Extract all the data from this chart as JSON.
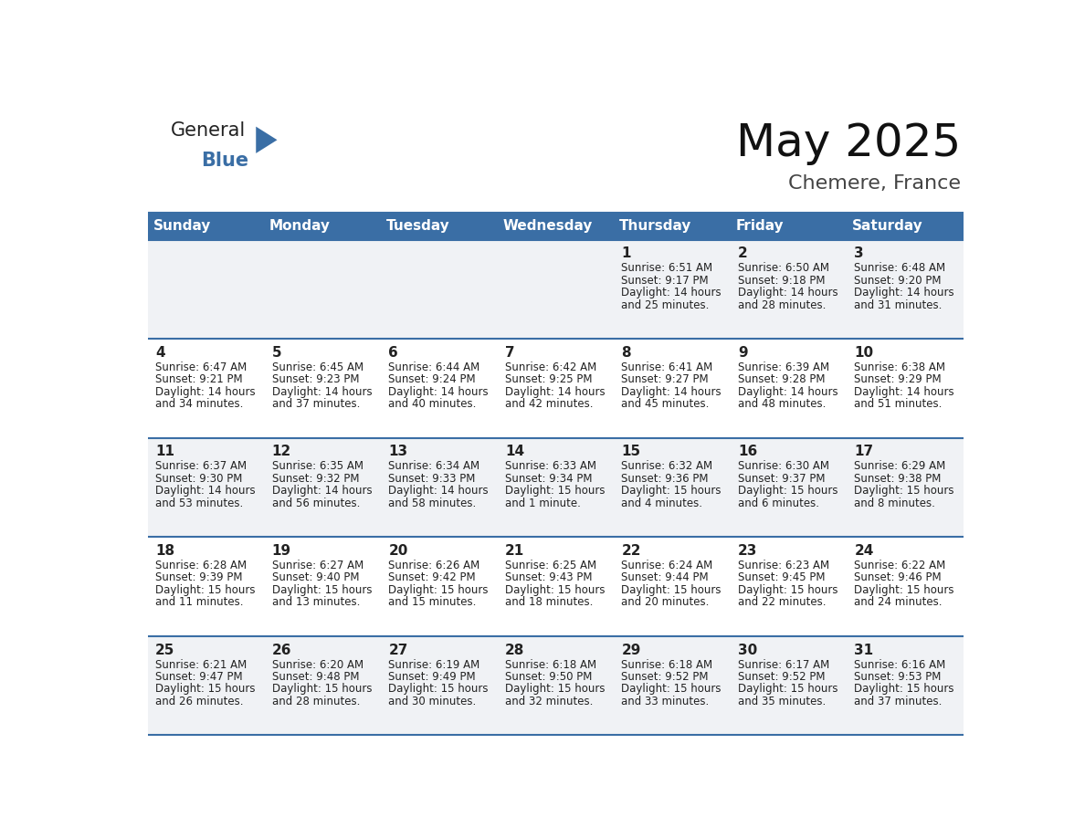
{
  "title": "May 2025",
  "subtitle": "Chemere, France",
  "days_of_week": [
    "Sunday",
    "Monday",
    "Tuesday",
    "Wednesday",
    "Thursday",
    "Friday",
    "Saturday"
  ],
  "header_color": "#3a6ea5",
  "header_text_color": "#ffffff",
  "row_bg_odd": "#f0f2f5",
  "row_bg_even": "#ffffff",
  "day_number_color": "#222222",
  "text_color": "#222222",
  "border_color": "#3a6ea5",
  "weeks": [
    [
      {
        "day": null,
        "info": null
      },
      {
        "day": null,
        "info": null
      },
      {
        "day": null,
        "info": null
      },
      {
        "day": null,
        "info": null
      },
      {
        "day": 1,
        "info": "Sunrise: 6:51 AM\nSunset: 9:17 PM\nDaylight: 14 hours\nand 25 minutes."
      },
      {
        "day": 2,
        "info": "Sunrise: 6:50 AM\nSunset: 9:18 PM\nDaylight: 14 hours\nand 28 minutes."
      },
      {
        "day": 3,
        "info": "Sunrise: 6:48 AM\nSunset: 9:20 PM\nDaylight: 14 hours\nand 31 minutes."
      }
    ],
    [
      {
        "day": 4,
        "info": "Sunrise: 6:47 AM\nSunset: 9:21 PM\nDaylight: 14 hours\nand 34 minutes."
      },
      {
        "day": 5,
        "info": "Sunrise: 6:45 AM\nSunset: 9:23 PM\nDaylight: 14 hours\nand 37 minutes."
      },
      {
        "day": 6,
        "info": "Sunrise: 6:44 AM\nSunset: 9:24 PM\nDaylight: 14 hours\nand 40 minutes."
      },
      {
        "day": 7,
        "info": "Sunrise: 6:42 AM\nSunset: 9:25 PM\nDaylight: 14 hours\nand 42 minutes."
      },
      {
        "day": 8,
        "info": "Sunrise: 6:41 AM\nSunset: 9:27 PM\nDaylight: 14 hours\nand 45 minutes."
      },
      {
        "day": 9,
        "info": "Sunrise: 6:39 AM\nSunset: 9:28 PM\nDaylight: 14 hours\nand 48 minutes."
      },
      {
        "day": 10,
        "info": "Sunrise: 6:38 AM\nSunset: 9:29 PM\nDaylight: 14 hours\nand 51 minutes."
      }
    ],
    [
      {
        "day": 11,
        "info": "Sunrise: 6:37 AM\nSunset: 9:30 PM\nDaylight: 14 hours\nand 53 minutes."
      },
      {
        "day": 12,
        "info": "Sunrise: 6:35 AM\nSunset: 9:32 PM\nDaylight: 14 hours\nand 56 minutes."
      },
      {
        "day": 13,
        "info": "Sunrise: 6:34 AM\nSunset: 9:33 PM\nDaylight: 14 hours\nand 58 minutes."
      },
      {
        "day": 14,
        "info": "Sunrise: 6:33 AM\nSunset: 9:34 PM\nDaylight: 15 hours\nand 1 minute."
      },
      {
        "day": 15,
        "info": "Sunrise: 6:32 AM\nSunset: 9:36 PM\nDaylight: 15 hours\nand 4 minutes."
      },
      {
        "day": 16,
        "info": "Sunrise: 6:30 AM\nSunset: 9:37 PM\nDaylight: 15 hours\nand 6 minutes."
      },
      {
        "day": 17,
        "info": "Sunrise: 6:29 AM\nSunset: 9:38 PM\nDaylight: 15 hours\nand 8 minutes."
      }
    ],
    [
      {
        "day": 18,
        "info": "Sunrise: 6:28 AM\nSunset: 9:39 PM\nDaylight: 15 hours\nand 11 minutes."
      },
      {
        "day": 19,
        "info": "Sunrise: 6:27 AM\nSunset: 9:40 PM\nDaylight: 15 hours\nand 13 minutes."
      },
      {
        "day": 20,
        "info": "Sunrise: 6:26 AM\nSunset: 9:42 PM\nDaylight: 15 hours\nand 15 minutes."
      },
      {
        "day": 21,
        "info": "Sunrise: 6:25 AM\nSunset: 9:43 PM\nDaylight: 15 hours\nand 18 minutes."
      },
      {
        "day": 22,
        "info": "Sunrise: 6:24 AM\nSunset: 9:44 PM\nDaylight: 15 hours\nand 20 minutes."
      },
      {
        "day": 23,
        "info": "Sunrise: 6:23 AM\nSunset: 9:45 PM\nDaylight: 15 hours\nand 22 minutes."
      },
      {
        "day": 24,
        "info": "Sunrise: 6:22 AM\nSunset: 9:46 PM\nDaylight: 15 hours\nand 24 minutes."
      }
    ],
    [
      {
        "day": 25,
        "info": "Sunrise: 6:21 AM\nSunset: 9:47 PM\nDaylight: 15 hours\nand 26 minutes."
      },
      {
        "day": 26,
        "info": "Sunrise: 6:20 AM\nSunset: 9:48 PM\nDaylight: 15 hours\nand 28 minutes."
      },
      {
        "day": 27,
        "info": "Sunrise: 6:19 AM\nSunset: 9:49 PM\nDaylight: 15 hours\nand 30 minutes."
      },
      {
        "day": 28,
        "info": "Sunrise: 6:18 AM\nSunset: 9:50 PM\nDaylight: 15 hours\nand 32 minutes."
      },
      {
        "day": 29,
        "info": "Sunrise: 6:18 AM\nSunset: 9:52 PM\nDaylight: 15 hours\nand 33 minutes."
      },
      {
        "day": 30,
        "info": "Sunrise: 6:17 AM\nSunset: 9:52 PM\nDaylight: 15 hours\nand 35 minutes."
      },
      {
        "day": 31,
        "info": "Sunrise: 6:16 AM\nSunset: 9:53 PM\nDaylight: 15 hours\nand 37 minutes."
      }
    ]
  ],
  "logo_general_color": "#222222",
  "logo_blue_color": "#3a6ea5",
  "logo_triangle_color": "#3a6ea5",
  "title_fontsize": 36,
  "subtitle_fontsize": 16,
  "header_fontsize": 11,
  "day_num_fontsize": 11,
  "info_fontsize": 8.5
}
